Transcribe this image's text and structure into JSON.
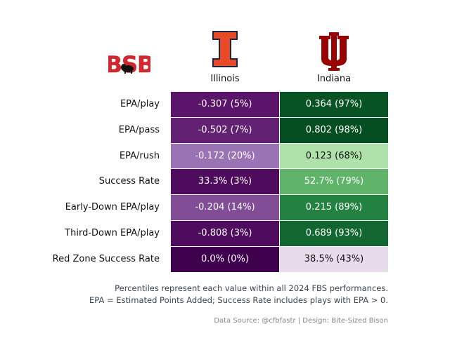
{
  "chart_data": {
    "type": "table",
    "logo_text": "BSB",
    "teams": [
      {
        "name": "Illinois",
        "color": "#E84A27",
        "outline": "#13294B"
      },
      {
        "name": "Indiana",
        "color": "#990000"
      }
    ],
    "metrics": [
      {
        "label": "EPA/play",
        "cells": [
          {
            "text": "-0.307 (5%)",
            "pct": 5,
            "scale": "purple"
          },
          {
            "text": "0.364 (97%)",
            "pct": 97,
            "scale": "green"
          }
        ]
      },
      {
        "label": "EPA/pass",
        "cells": [
          {
            "text": "-0.502 (7%)",
            "pct": 7,
            "scale": "purple"
          },
          {
            "text": "0.802 (98%)",
            "pct": 98,
            "scale": "green"
          }
        ]
      },
      {
        "label": "EPA/rush",
        "cells": [
          {
            "text": "-0.172 (20%)",
            "pct": 20,
            "scale": "purple"
          },
          {
            "text": "0.123 (68%)",
            "pct": 68,
            "scale": "green"
          }
        ]
      },
      {
        "label": "Success Rate",
        "cells": [
          {
            "text": "33.3% (3%)",
            "pct": 3,
            "scale": "purple"
          },
          {
            "text": "52.7% (79%)",
            "pct": 79,
            "scale": "green"
          }
        ]
      },
      {
        "label": "Early-Down EPA/play",
        "cells": [
          {
            "text": "-0.204 (14%)",
            "pct": 14,
            "scale": "purple"
          },
          {
            "text": "0.215 (89%)",
            "pct": 89,
            "scale": "green"
          }
        ]
      },
      {
        "label": "Third-Down EPA/play",
        "cells": [
          {
            "text": "-0.808 (3%)",
            "pct": 3,
            "scale": "purple"
          },
          {
            "text": "0.689 (93%)",
            "pct": 93,
            "scale": "green"
          }
        ]
      },
      {
        "label": "Red Zone Success Rate",
        "cells": [
          {
            "text": "0.0% (0%)",
            "pct": 0,
            "scale": "purple"
          },
          {
            "text": "38.5% (43%)",
            "pct": 43,
            "scale": "purple"
          }
        ]
      }
    ],
    "footnote_1": "Percentiles represent each value within all 2024 FBS performances.",
    "footnote_2": "EPA = Estimated Points Added; Success Rate includes plays with EPA > 0.",
    "credit": "Data Source: @cfbfastr | Design: Bite-Sized Bison"
  }
}
